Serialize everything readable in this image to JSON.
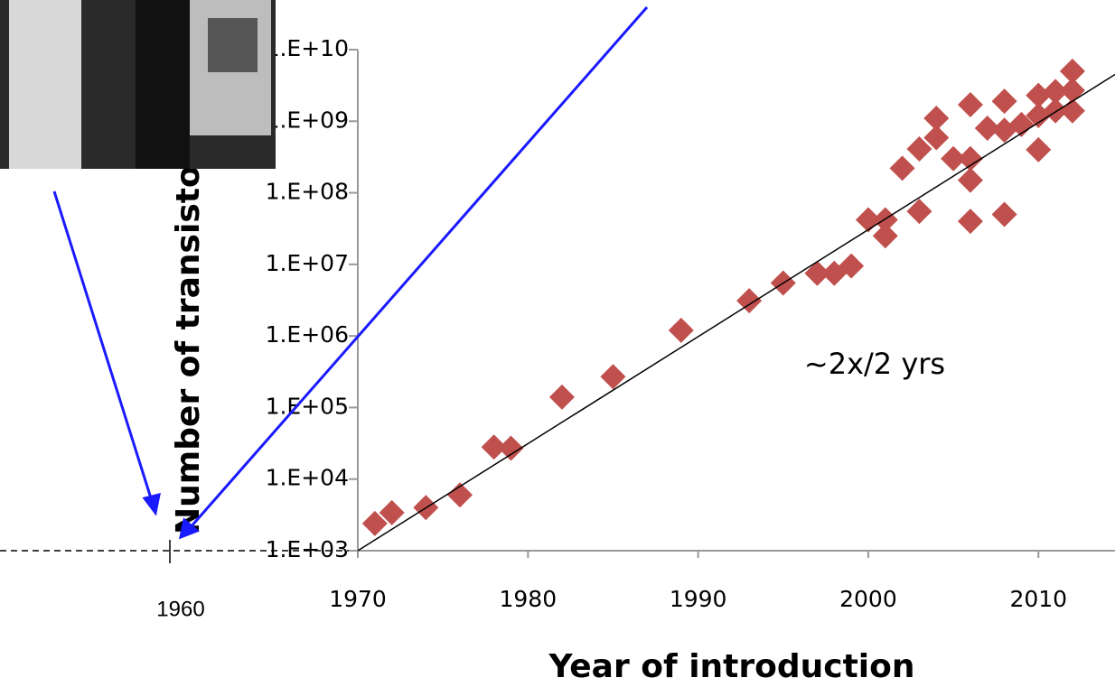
{
  "chart_data": {
    "type": "scatter",
    "x_label": "Year of introduction",
    "y_label": "Number of transistors",
    "annotation": "~2x/2 yrs",
    "extension_label": "1960",
    "x": [
      1971,
      1972,
      1974,
      1976,
      1978,
      1979,
      1982,
      1985,
      1989,
      1993,
      1995,
      1997,
      1998,
      1999,
      2000,
      2001,
      2001,
      2002,
      2003,
      2003,
      2004,
      2004,
      2005,
      2006,
      2006,
      2006,
      2006,
      2007,
      2008,
      2008,
      2008,
      2009,
      2010,
      2010,
      2010,
      2011,
      2011,
      2012,
      2012,
      2012
    ],
    "values": [
      2400,
      3400,
      4000,
      6000,
      28000,
      27000,
      140000,
      270000,
      1200000,
      3100000,
      5500000,
      7500000,
      7500000,
      9500000,
      42000000,
      25000000,
      42000000,
      220000000,
      55000000,
      410000000,
      590000000,
      1100000000,
      300000000,
      1700000000,
      150000000,
      40000000,
      300000000,
      800000000,
      1900000000,
      50000000,
      750000000,
      900000000,
      2300000000,
      400000000,
      1200000000,
      2600000000,
      1400000000,
      5000000000,
      1400000000,
      2700000000
    ],
    "color": "#c0504d",
    "trend": {
      "x": [
        1970,
        2014.5
      ],
      "values": [
        1000,
        4500000000
      ],
      "color": "#000000"
    },
    "log_y": true,
    "xlim": [
      1970,
      2014.5
    ],
    "xticks": [
      1970,
      1980,
      1990,
      2000,
      2010
    ],
    "ylim": [
      1000,
      10000000000
    ],
    "yticks": [
      {
        "value": 1000,
        "label": "1.E+03"
      },
      {
        "value": 10000,
        "label": "1.E+04"
      },
      {
        "value": 100000,
        "label": "1.E+05"
      },
      {
        "value": 1000000,
        "label": "1.E+06"
      },
      {
        "value": 10000000,
        "label": "1.E+07"
      },
      {
        "value": 100000000,
        "label": "1.E+08"
      },
      {
        "value": 1000000000,
        "label": "1.E+09"
      },
      {
        "value": 10000000000,
        "label": "1.E+10"
      }
    ]
  }
}
